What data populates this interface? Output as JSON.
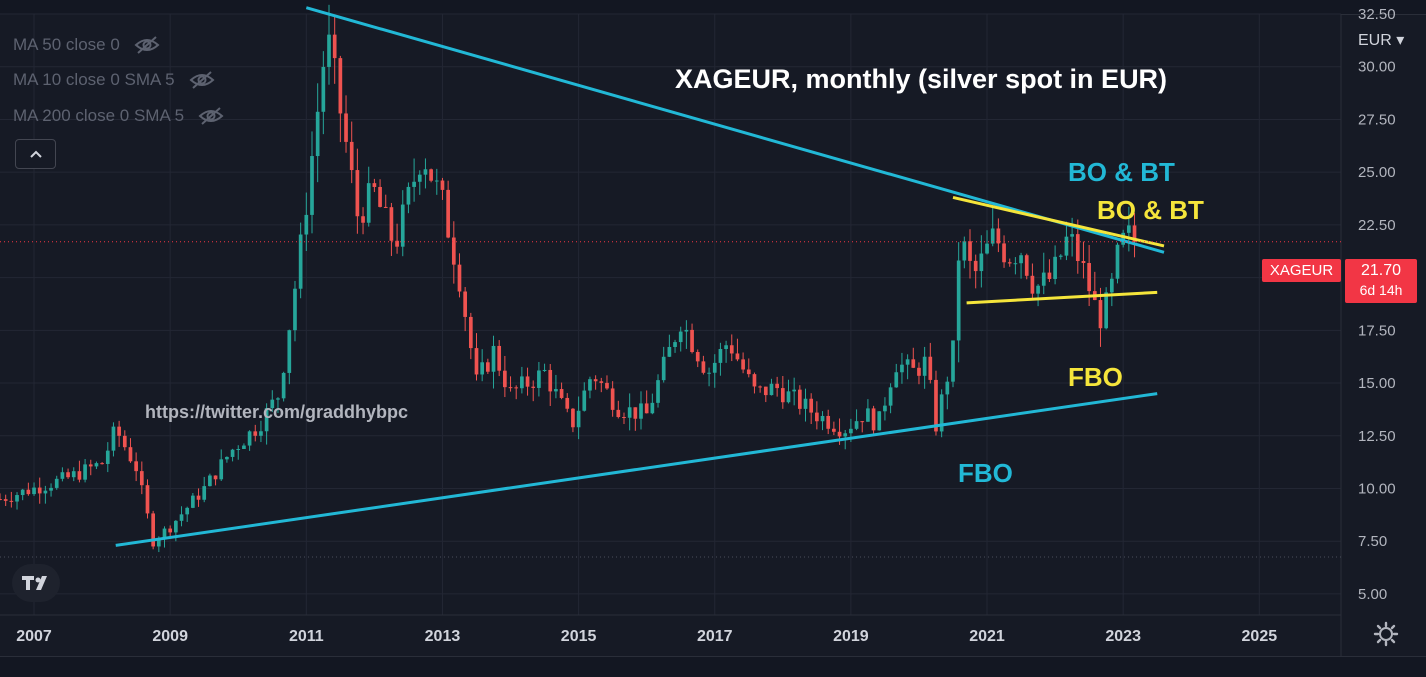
{
  "title": "XAGEUR, monthly (silver spot in EUR)",
  "watermark": "https://twitter.com/graddhybpc",
  "indicators": [
    {
      "label": "MA 50 close 0",
      "icon": "eye-off-icon"
    },
    {
      "label": "MA 10 close 0 SMA 5",
      "icon": "eye-off-icon"
    },
    {
      "label": "MA 200 close 0 SMA 5",
      "icon": "eye-off-icon"
    }
  ],
  "annotations": {
    "bo_bt_cyan": "BO & BT",
    "bo_bt_yellow": "BO & BT",
    "fbo_yellow": "FBO",
    "fbo_cyan": "FBO"
  },
  "price_scale": {
    "currency": "EUR",
    "symbol_tag": "XAGEUR",
    "last_price": "21.70",
    "countdown": "6d 14h"
  },
  "colors": {
    "background": "#161a25",
    "grid": "#232734",
    "up": "#26a69a",
    "down": "#ef5350",
    "trendline_cyan": "#22b8d6",
    "trendline_yellow": "#f5e53b",
    "price_label": "#f23645"
  },
  "chart_data": {
    "type": "candlestick",
    "title": "XAGEUR, monthly (silver spot in EUR)",
    "x_ticks": [
      "2007",
      "2009",
      "2011",
      "2013",
      "2015",
      "2017",
      "2019",
      "2021",
      "2023",
      "2025"
    ],
    "y_ticks": [
      "5.00",
      "7.50",
      "10.00",
      "12.50",
      "15.00",
      "17.50",
      "20.00",
      "22.50",
      "25.00",
      "27.50",
      "30.00",
      "32.50"
    ],
    "ylim": [
      4.0,
      32.5
    ],
    "xlim": [
      2006.5,
      2026.2
    ],
    "last_price": 21.7,
    "price_anchors": [
      [
        2006.5,
        9.5
      ],
      [
        2007.0,
        10.0
      ],
      [
        2007.5,
        10.5
      ],
      [
        2008.0,
        11.2
      ],
      [
        2008.2,
        12.8
      ],
      [
        2008.5,
        11.0
      ],
      [
        2008.75,
        7.5
      ],
      [
        2009.0,
        8.2
      ],
      [
        2009.5,
        10.0
      ],
      [
        2009.9,
        11.8
      ],
      [
        2010.3,
        13.0
      ],
      [
        2010.6,
        14.5
      ],
      [
        2010.9,
        21.0
      ],
      [
        2011.15,
        27.5
      ],
      [
        2011.3,
        31.5
      ],
      [
        2011.55,
        27.0
      ],
      [
        2011.75,
        23.0
      ],
      [
        2012.0,
        24.0
      ],
      [
        2012.3,
        21.5
      ],
      [
        2012.7,
        26.0
      ],
      [
        2013.0,
        23.5
      ],
      [
        2013.25,
        20.0
      ],
      [
        2013.5,
        15.0
      ],
      [
        2013.75,
        16.5
      ],
      [
        2014.0,
        14.5
      ],
      [
        2014.5,
        15.5
      ],
      [
        2014.9,
        13.0
      ],
      [
        2015.2,
        15.5
      ],
      [
        2015.6,
        13.8
      ],
      [
        2016.0,
        13.5
      ],
      [
        2016.5,
        18.0
      ],
      [
        2016.9,
        15.5
      ],
      [
        2017.2,
        17.0
      ],
      [
        2017.6,
        14.5
      ],
      [
        2017.9,
        14.8
      ],
      [
        2018.5,
        13.5
      ],
      [
        2018.9,
        12.8
      ],
      [
        2019.2,
        13.6
      ],
      [
        2019.4,
        13.0
      ],
      [
        2019.65,
        16.0
      ],
      [
        2019.9,
        15.5
      ],
      [
        2020.1,
        16.0
      ],
      [
        2020.25,
        13.0
      ],
      [
        2020.5,
        16.5
      ],
      [
        2020.6,
        22.0
      ],
      [
        2020.8,
        20.0
      ],
      [
        2021.1,
        22.0
      ],
      [
        2021.3,
        21.0
      ],
      [
        2021.5,
        21.3
      ],
      [
        2021.7,
        19.5
      ],
      [
        2021.95,
        20.0
      ],
      [
        2022.2,
        22.0
      ],
      [
        2022.4,
        20.5
      ],
      [
        2022.65,
        18.0
      ],
      [
        2022.8,
        19.0
      ],
      [
        2022.95,
        21.5
      ],
      [
        2023.1,
        22.0
      ],
      [
        2023.2,
        21.7
      ]
    ],
    "trendlines": [
      {
        "name": "upper_cyan",
        "color": "cyan",
        "points": [
          [
            2011.0,
            32.8
          ],
          [
            2023.6,
            21.2
          ]
        ]
      },
      {
        "name": "lower_cyan",
        "color": "cyan",
        "points": [
          [
            2008.2,
            7.3
          ],
          [
            2023.5,
            14.5
          ]
        ]
      },
      {
        "name": "upper_yellow",
        "color": "yellow",
        "points": [
          [
            2020.5,
            23.8
          ],
          [
            2023.6,
            21.5
          ]
        ]
      },
      {
        "name": "lower_yellow",
        "color": "yellow",
        "points": [
          [
            2020.7,
            18.8
          ],
          [
            2023.5,
            19.3
          ]
        ]
      }
    ]
  }
}
